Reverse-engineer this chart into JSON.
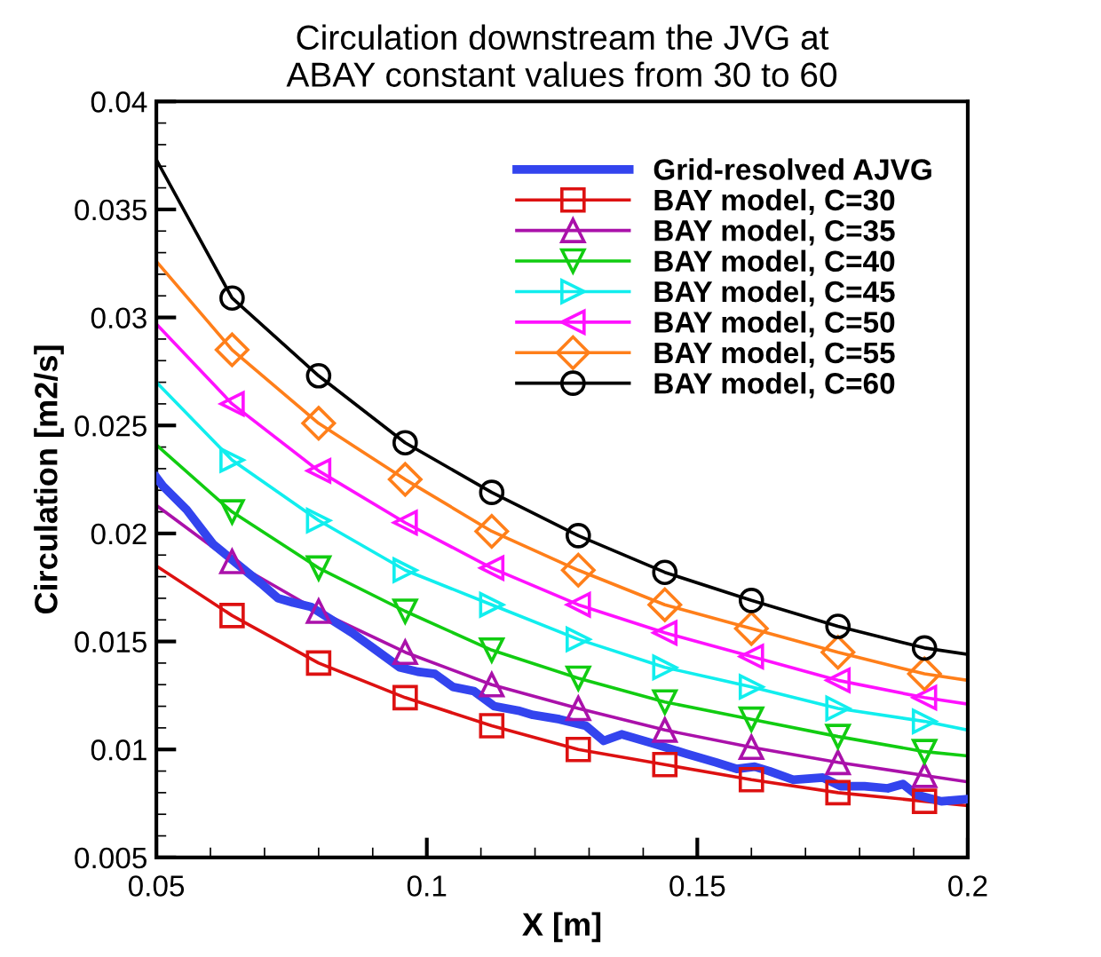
{
  "chart_data": {
    "type": "line",
    "title": "Circulation downstream the JVG at\nABAY constant values from 30 to 60",
    "xlabel": "X [m]",
    "ylabel": "Circulation [m2/s]",
    "xlim": [
      0.05,
      0.2
    ],
    "xticks": [
      0.05,
      0.1,
      0.15,
      0.2
    ],
    "ylim": [
      0.005,
      0.04
    ],
    "yticks": [
      0.005,
      0.01,
      0.015,
      0.02,
      0.025,
      0.03,
      0.035,
      0.04
    ],
    "grid": false,
    "legend": "top right",
    "series": [
      {
        "name": "Grid-resolved AJVG",
        "color": "#3344ee",
        "marker": "none",
        "x": [
          0.05,
          0.0512,
          0.0556,
          0.0605,
          0.0654,
          0.0693,
          0.0725,
          0.0753,
          0.0786,
          0.0818,
          0.0862,
          0.0906,
          0.095,
          0.0983,
          0.1015,
          0.1048,
          0.1087,
          0.1125,
          0.1169,
          0.1196,
          0.1245,
          0.1294,
          0.1327,
          0.136,
          0.1415,
          0.148,
          0.1535,
          0.1573,
          0.1606,
          0.1633,
          0.1677,
          0.1732,
          0.1765,
          0.1809,
          0.1852,
          0.188,
          0.1905,
          0.1951,
          0.2
        ],
        "values": [
          0.0226,
          0.0222,
          0.0211,
          0.0195,
          0.0185,
          0.0177,
          0.017,
          0.0168,
          0.0166,
          0.0161,
          0.0154,
          0.0146,
          0.0138,
          0.0136,
          0.0135,
          0.0129,
          0.0127,
          0.012,
          0.0118,
          0.0116,
          0.0114,
          0.0111,
          0.0104,
          0.0107,
          0.0103,
          0.0098,
          0.0094,
          0.0091,
          0.0092,
          0.009,
          0.0086,
          0.0087,
          0.0083,
          0.0083,
          0.0082,
          0.0084,
          0.0079,
          0.0076,
          0.0077
        ]
      },
      {
        "name": "BAY model, C=30",
        "color": "#dd1111",
        "marker": "square",
        "x": [
          0.05,
          0.064,
          0.08,
          0.096,
          0.112,
          0.128,
          0.144,
          0.16,
          0.176,
          0.192,
          0.2
        ],
        "values": [
          0.0185,
          0.0162,
          0.014,
          0.0124,
          0.0111,
          0.01,
          0.0093,
          0.0086,
          0.008,
          0.0076,
          0.0074
        ]
      },
      {
        "name": "BAY model, C=35",
        "color": "#aa11aa",
        "marker": "triangle",
        "x": [
          0.05,
          0.064,
          0.08,
          0.096,
          0.112,
          0.128,
          0.144,
          0.16,
          0.176,
          0.192,
          0.2
        ],
        "values": [
          0.0213,
          0.0187,
          0.0164,
          0.0145,
          0.013,
          0.0119,
          0.0109,
          0.0101,
          0.0094,
          0.0088,
          0.0085
        ]
      },
      {
        "name": "BAY model, C=40",
        "color": "#11cc11",
        "marker": "triangle-down",
        "x": [
          0.05,
          0.064,
          0.08,
          0.096,
          0.112,
          0.128,
          0.144,
          0.16,
          0.176,
          0.192,
          0.2
        ],
        "values": [
          0.0241,
          0.021,
          0.0184,
          0.0164,
          0.0146,
          0.0133,
          0.0122,
          0.0114,
          0.0106,
          0.0099,
          0.0097
        ]
      },
      {
        "name": "BAY model, C=45",
        "color": "#11eeee",
        "marker": "triangle-right",
        "x": [
          0.05,
          0.064,
          0.08,
          0.096,
          0.112,
          0.128,
          0.144,
          0.16,
          0.176,
          0.192,
          0.2
        ],
        "values": [
          0.027,
          0.0234,
          0.0206,
          0.0183,
          0.0167,
          0.0151,
          0.0138,
          0.0129,
          0.0119,
          0.0113,
          0.0109
        ]
      },
      {
        "name": "BAY model, C=50",
        "color": "#ff11ff",
        "marker": "triangle-left",
        "x": [
          0.05,
          0.064,
          0.08,
          0.096,
          0.112,
          0.128,
          0.144,
          0.16,
          0.176,
          0.192,
          0.2
        ],
        "values": [
          0.0297,
          0.026,
          0.0229,
          0.0205,
          0.0184,
          0.0167,
          0.0154,
          0.0143,
          0.0132,
          0.0124,
          0.0121
        ]
      },
      {
        "name": "BAY model, C=55",
        "color": "#ff7f1a",
        "marker": "diamond",
        "x": [
          0.05,
          0.064,
          0.08,
          0.096,
          0.112,
          0.128,
          0.144,
          0.16,
          0.176,
          0.192,
          0.2
        ],
        "values": [
          0.0326,
          0.0285,
          0.0251,
          0.0225,
          0.0201,
          0.0183,
          0.0167,
          0.0156,
          0.0145,
          0.0135,
          0.0132
        ]
      },
      {
        "name": "BAY model, C=60",
        "color": "#000000",
        "marker": "circle",
        "x": [
          0.05,
          0.064,
          0.08,
          0.096,
          0.112,
          0.128,
          0.144,
          0.16,
          0.176,
          0.192,
          0.2
        ],
        "values": [
          0.0373,
          0.0309,
          0.0273,
          0.0242,
          0.0219,
          0.0199,
          0.0182,
          0.0169,
          0.0157,
          0.0147,
          0.0144
        ]
      }
    ]
  }
}
